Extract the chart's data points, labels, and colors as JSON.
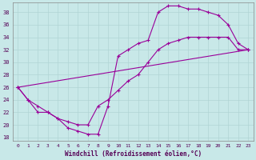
{
  "xlabel": "Windchill (Refroidissement éolien,°C)",
  "bg_color": "#c8e8e8",
  "line_color": "#990099",
  "grid_color": "#b0d4d4",
  "xlim": [
    -0.5,
    23.5
  ],
  "ylim": [
    17.5,
    39.5
  ],
  "xticks": [
    0,
    1,
    2,
    3,
    4,
    5,
    6,
    7,
    8,
    9,
    10,
    11,
    12,
    13,
    14,
    15,
    16,
    17,
    18,
    19,
    20,
    21,
    22,
    23
  ],
  "yticks": [
    18,
    20,
    22,
    24,
    26,
    28,
    30,
    32,
    34,
    36,
    38
  ],
  "curve1_x": [
    0,
    1,
    2,
    3,
    4,
    5,
    6,
    7,
    8,
    9,
    10,
    11,
    12,
    13,
    14,
    15,
    16,
    17,
    18,
    19,
    20,
    21,
    22,
    23
  ],
  "curve1_y": [
    26,
    24,
    22,
    22,
    21,
    19.5,
    19,
    18.5,
    18.5,
    23,
    31,
    32,
    33,
    33.5,
    38,
    39,
    39,
    38.5,
    38.5,
    38,
    37.5,
    36,
    33,
    32
  ],
  "curve2_x": [
    0,
    1,
    2,
    3,
    4,
    5,
    6,
    7,
    8,
    9,
    10,
    11,
    12,
    13,
    14,
    15,
    16,
    17,
    18,
    19,
    20,
    21,
    22,
    23
  ],
  "curve2_y": [
    26,
    24,
    23,
    22,
    21,
    20.5,
    20,
    20,
    23,
    24,
    25.5,
    27,
    28,
    30,
    32,
    33,
    33.5,
    34,
    34,
    34,
    34,
    34,
    32,
    32
  ],
  "curve3_x": [
    0,
    23
  ],
  "curve3_y": [
    26,
    32
  ]
}
